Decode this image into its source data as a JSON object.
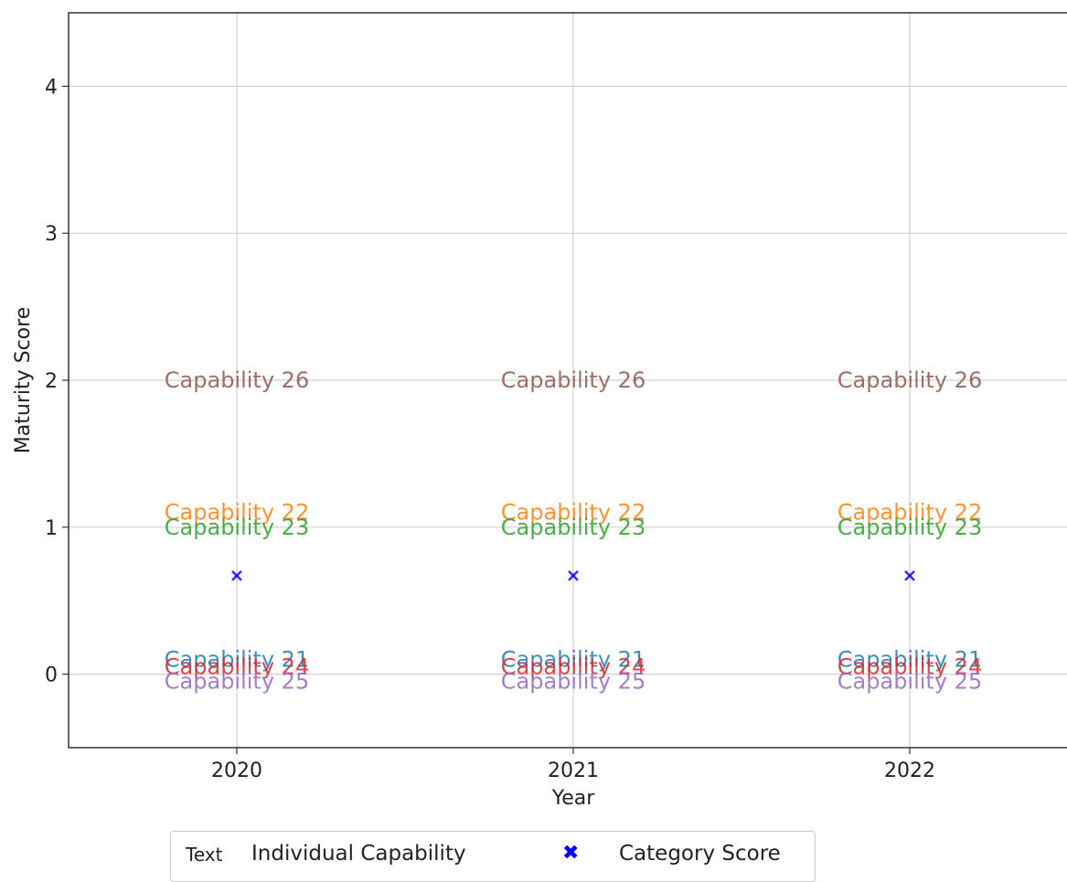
{
  "chart_data": {
    "type": "scatter",
    "xlabel": "Year",
    "ylabel": "Maturity Score",
    "categories": [
      "2020",
      "2021",
      "2022"
    ],
    "ylim": [
      -0.5,
      4.5
    ],
    "yticks": [
      0,
      1,
      2,
      3,
      4
    ],
    "grid": true,
    "legend_position": "bottom-center",
    "legend": [
      {
        "key": "Text",
        "label": "Individual Capability"
      },
      {
        "key": "✖",
        "label": "Category Score"
      }
    ],
    "capabilities": [
      {
        "name": "Capability 21",
        "value": 0.1,
        "color": "#1f77b4"
      },
      {
        "name": "Capability 22",
        "value": 1.1,
        "color": "#ff7f0e"
      },
      {
        "name": "Capability 23",
        "value": 1.0,
        "color": "#2ca02c"
      },
      {
        "name": "Capability 24",
        "value": 0.05,
        "color": "#d62728"
      },
      {
        "name": "Capability 25",
        "value": -0.05,
        "color": "#9467bd"
      },
      {
        "name": "Capability 26",
        "value": 2.0,
        "color": "#8c564b"
      }
    ],
    "category_scores": [
      0.67,
      0.67,
      0.67
    ],
    "category_score_color": "#0000ff"
  }
}
